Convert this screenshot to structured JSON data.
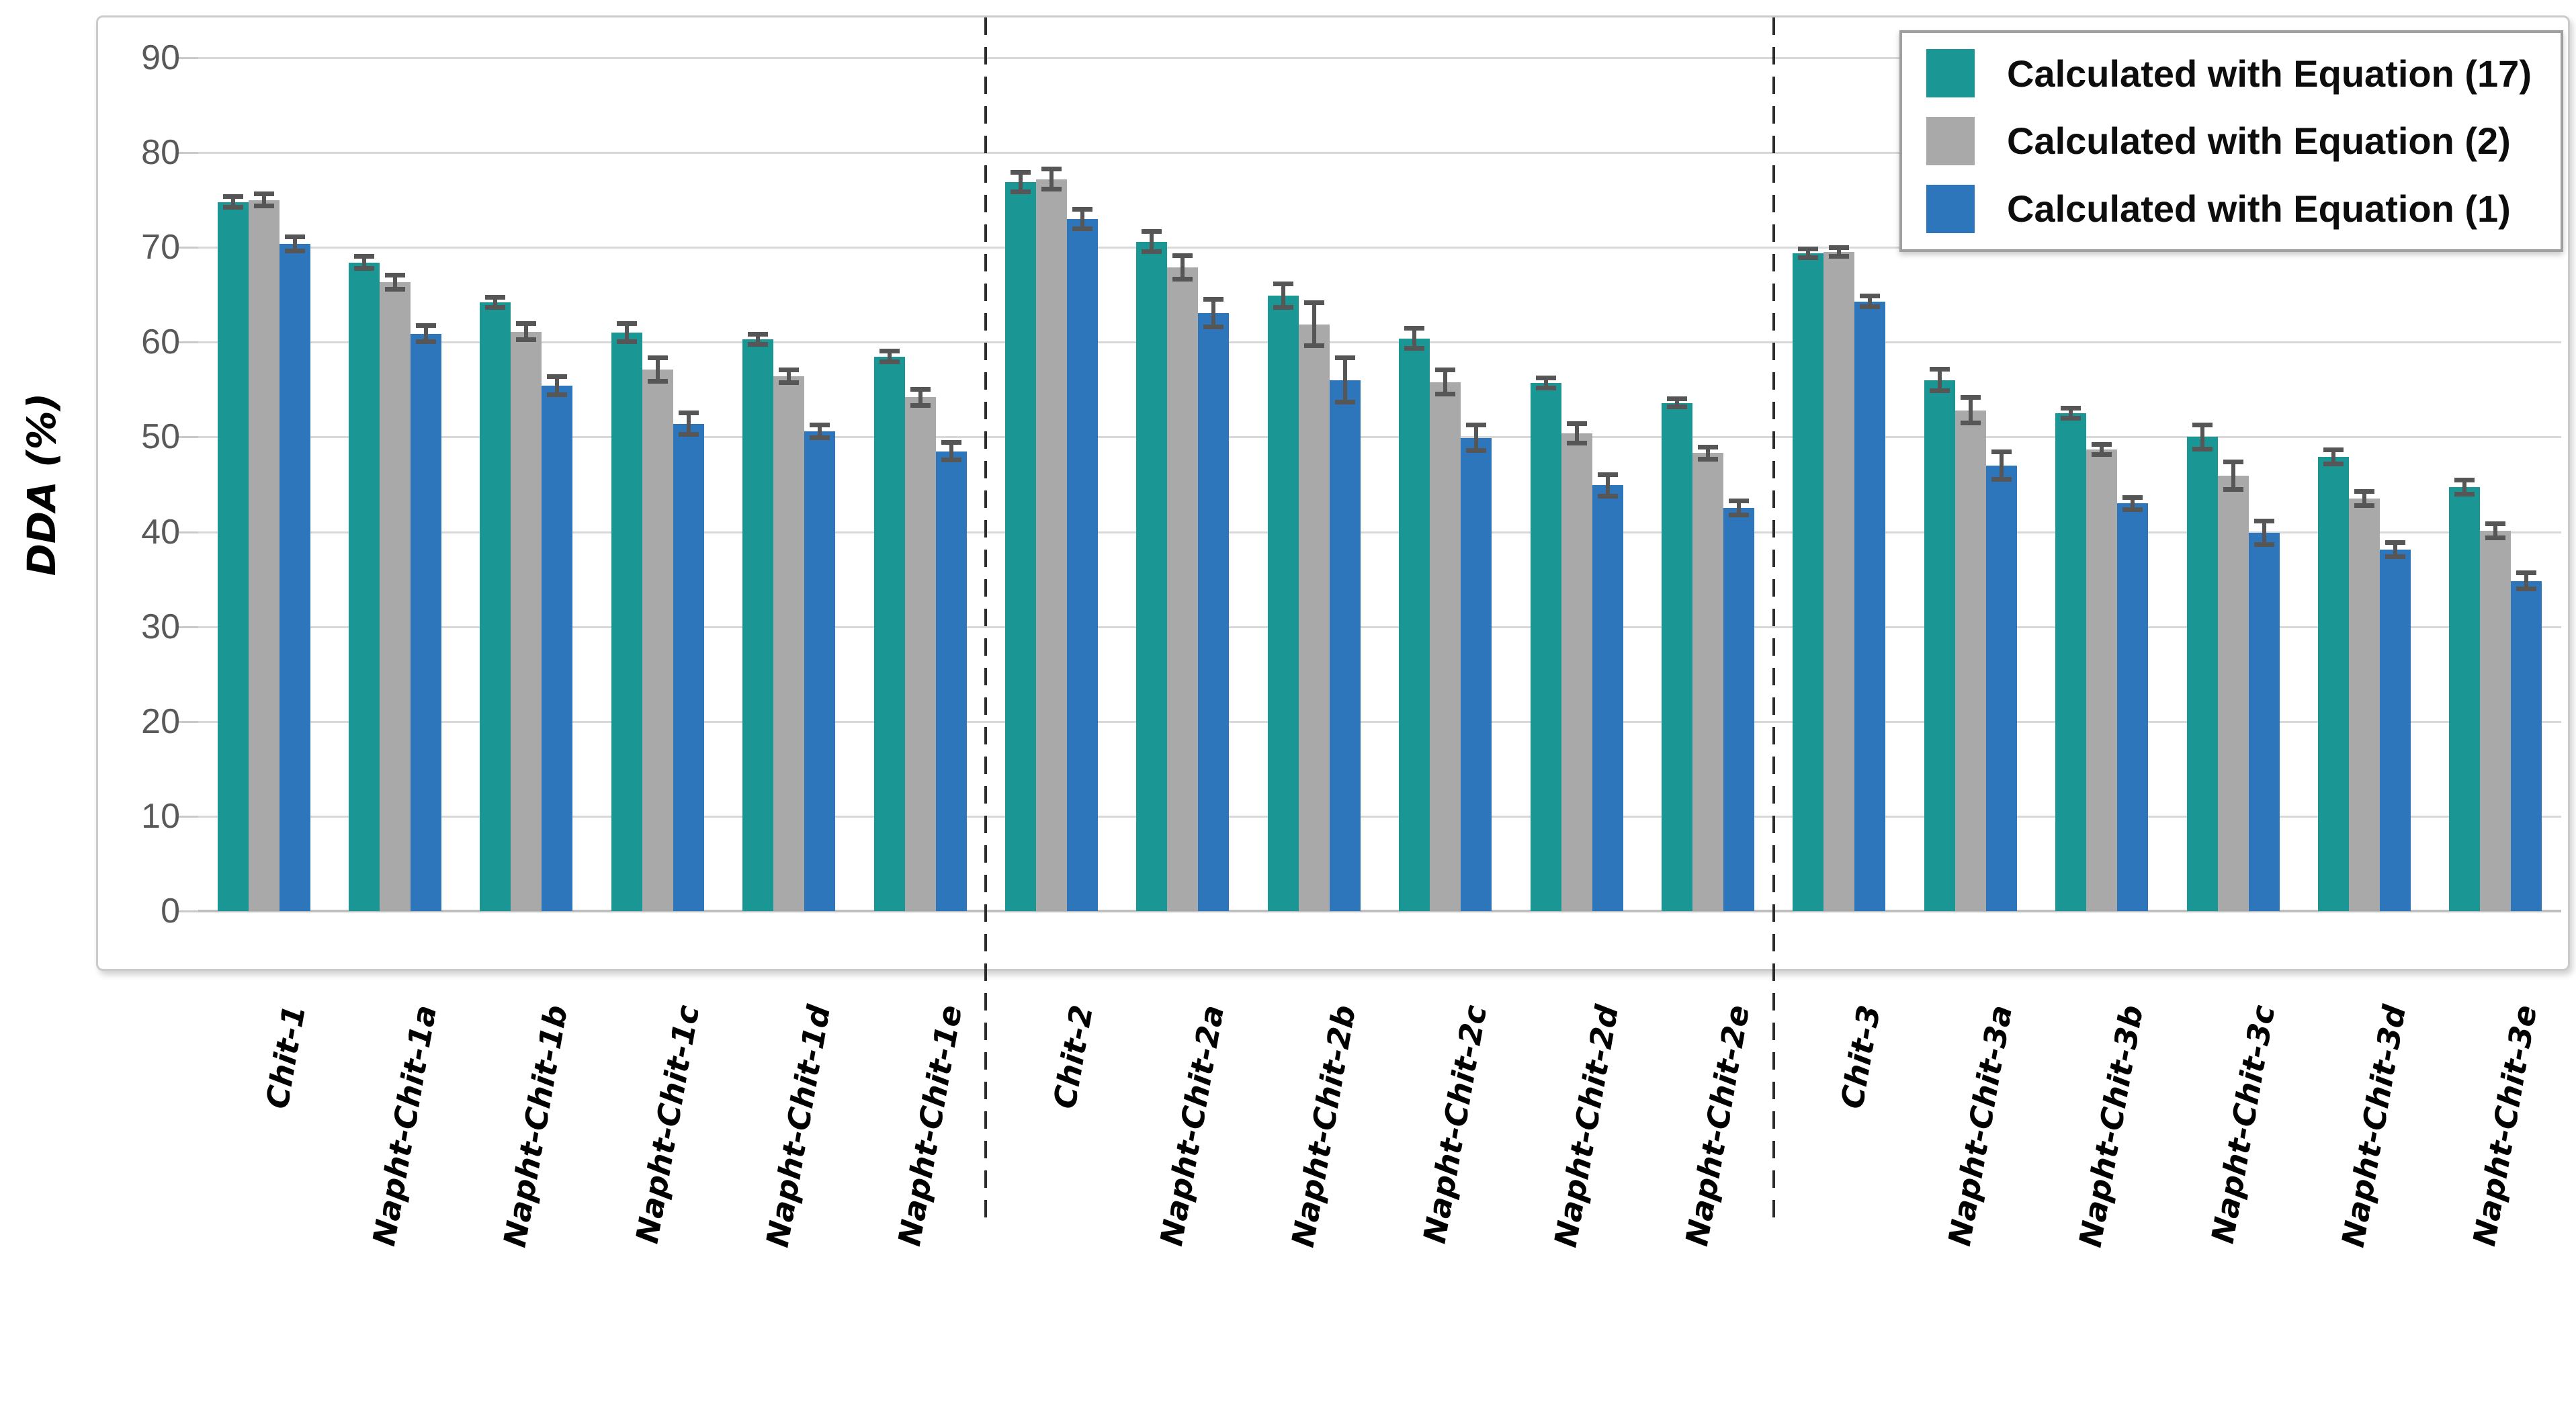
{
  "chart_data": {
    "type": "bar",
    "title": "",
    "ylabel": "DDA (%)",
    "xlabel": "",
    "ylim": [
      0,
      90
    ],
    "yticks": [
      0,
      10,
      20,
      30,
      40,
      50,
      60,
      70,
      80,
      90
    ],
    "grid": true,
    "legend_position": "top-right",
    "categories": [
      "Chit-1",
      "Napht-Chit-1a",
      "Napht-Chit-1b",
      "Napht-Chit-1c",
      "Napht-Chit-1d",
      "Napht-Chit-1e",
      "Chit-2",
      "Napht-Chit-2a",
      "Napht-Chit-2b",
      "Napht-Chit-2c",
      "Napht-Chit-2d",
      "Napht-Chit-2e",
      "Chit-3",
      "Napht-Chit-3a",
      "Napht-Chit-3b",
      "Napht-Chit-3c",
      "Napht-Chit-3d",
      "Napht-Chit-3e"
    ],
    "group_separators_after_index": [
      5,
      11
    ],
    "series": [
      {
        "name": "Calculated with Equation (17)",
        "color": "#1A9694",
        "values": [
          74.8,
          68.4,
          64.2,
          61.0,
          60.3,
          58.5,
          76.9,
          70.6,
          64.9,
          60.4,
          55.7,
          53.6,
          69.4,
          56.0,
          52.5,
          50.0,
          47.9,
          44.7
        ],
        "errors": [
          0.3,
          0.4,
          0.3,
          0.7,
          0.3,
          0.3,
          0.8,
          0.8,
          1.0,
          0.8,
          0.3,
          0.2,
          0.2,
          0.9,
          0.3,
          1.0,
          0.5,
          0.5
        ]
      },
      {
        "name": "Calculated with Equation (2)",
        "color": "#A9A9A9",
        "values": [
          75.0,
          66.3,
          61.1,
          57.1,
          56.4,
          54.2,
          77.2,
          67.9,
          61.9,
          55.8,
          50.4,
          48.3,
          69.5,
          52.8,
          48.7,
          45.9,
          43.5,
          40.1
        ],
        "errors": [
          0.4,
          0.5,
          0.6,
          1.0,
          0.4,
          0.6,
          0.8,
          1.0,
          2.0,
          1.0,
          0.8,
          0.4,
          0.2,
          1.1,
          0.3,
          1.2,
          0.5,
          0.5
        ]
      },
      {
        "name": "Calculated with Equation (1)",
        "color": "#2D76BC",
        "values": [
          70.4,
          60.9,
          55.4,
          51.4,
          50.6,
          48.5,
          73.0,
          63.1,
          56.0,
          49.9,
          44.9,
          42.5,
          64.3,
          47.0,
          43.0,
          39.9,
          38.1,
          34.8
        ],
        "errors": [
          0.5,
          0.6,
          0.7,
          0.9,
          0.4,
          0.7,
          0.8,
          1.2,
          2.1,
          1.1,
          0.9,
          0.5,
          0.3,
          1.2,
          0.4,
          1.0,
          0.5,
          0.6
        ]
      }
    ],
    "colors": {
      "gridline": "#D8D8D8",
      "axis_line": "#BFBFBF",
      "tick_label": "#595959",
      "error_bar": "#565656",
      "separator": "#2D2D2D"
    }
  }
}
